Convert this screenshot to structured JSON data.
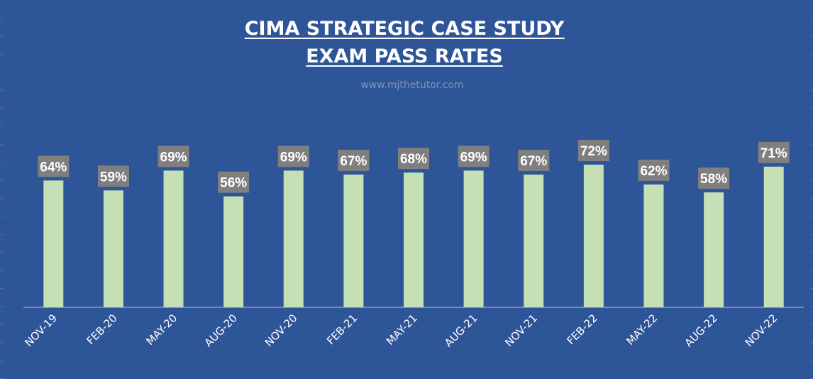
{
  "chart_data": {
    "type": "bar",
    "title_lines": [
      "CIMA STRATEGIC CASE STUDY",
      "EXAM PASS RATES"
    ],
    "subtitle": "www.mjthetutor.com",
    "categories": [
      "NOV-19",
      "FEB-20",
      "MAY-20",
      "AUG-20",
      "NOV-20",
      "FEB-21",
      "MAY-21",
      "AUG-21",
      "NOV-21",
      "FEB-22",
      "MAY-22",
      "AUG-22",
      "NOV-22"
    ],
    "values": [
      64,
      59,
      69,
      56,
      69,
      67,
      68,
      69,
      67,
      72,
      62,
      58,
      71
    ],
    "data_labels": [
      "64%",
      "59%",
      "69%",
      "56%",
      "69%",
      "67%",
      "68%",
      "69%",
      "67%",
      "72%",
      "62%",
      "58%",
      "71%"
    ],
    "value_unit": "%",
    "ylim": [
      0,
      138
    ],
    "grid": false,
    "legend": "none",
    "colors": {
      "background": "#2e5597",
      "bar": "#c5e0b4",
      "label_box": "#7f7f7f",
      "text": "#ffffff",
      "subtitle": "#8391b5"
    }
  }
}
